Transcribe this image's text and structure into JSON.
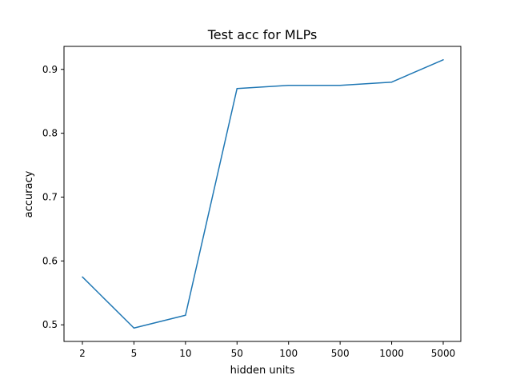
{
  "chart_data": {
    "type": "line",
    "title": "Test acc for MLPs",
    "xlabel": "hidden units",
    "ylabel": "accuracy",
    "categories": [
      "2",
      "5",
      "10",
      "50",
      "100",
      "500",
      "1000",
      "5000"
    ],
    "series": [
      {
        "values": [
          0.575,
          0.495,
          0.515,
          0.87,
          0.875,
          0.875,
          0.88,
          0.915
        ]
      }
    ],
    "yticks": [
      "0.5",
      "0.6",
      "0.7",
      "0.8",
      "0.9"
    ],
    "ylim": [
      0.474,
      0.936
    ],
    "grid": false,
    "line_color": "#1f77b4"
  }
}
